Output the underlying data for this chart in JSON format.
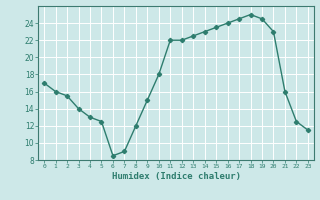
{
  "xlabel": "Humidex (Indice chaleur)",
  "ylabel": "",
  "x": [
    0,
    1,
    2,
    3,
    4,
    5,
    6,
    7,
    8,
    9,
    10,
    11,
    12,
    13,
    14,
    15,
    16,
    17,
    18,
    19,
    20,
    21,
    22,
    23
  ],
  "y": [
    17,
    16,
    15.5,
    14,
    13,
    12.5,
    8.5,
    9,
    12,
    15,
    18,
    22,
    22,
    22.5,
    23,
    23.5,
    24,
    24.5,
    25,
    24.5,
    23,
    16,
    12.5,
    11.5
  ],
  "ylim": [
    8,
    26
  ],
  "xlim": [
    -0.5,
    23.5
  ],
  "yticks": [
    8,
    10,
    12,
    14,
    16,
    18,
    20,
    22,
    24
  ],
  "xticks": [
    0,
    1,
    2,
    3,
    4,
    5,
    6,
    7,
    8,
    9,
    10,
    11,
    12,
    13,
    14,
    15,
    16,
    17,
    18,
    19,
    20,
    21,
    22,
    23
  ],
  "xtick_labels": [
    "0",
    "1",
    "2",
    "3",
    "4",
    "5",
    "6",
    "7",
    "8",
    "9",
    "10",
    "11",
    "12",
    "13",
    "14",
    "15",
    "16",
    "17",
    "18",
    "19",
    "20",
    "21",
    "22",
    "23"
  ],
  "line_color": "#2e7d6e",
  "marker": "D",
  "marker_size": 2.2,
  "bg_color": "#cde8e8",
  "grid_color": "#ffffff",
  "axes_color": "#3d7a70",
  "tick_color": "#2e7d6e",
  "xlabel_fontsize": 6.5,
  "ytick_fontsize": 5.5,
  "xtick_fontsize": 4.5
}
